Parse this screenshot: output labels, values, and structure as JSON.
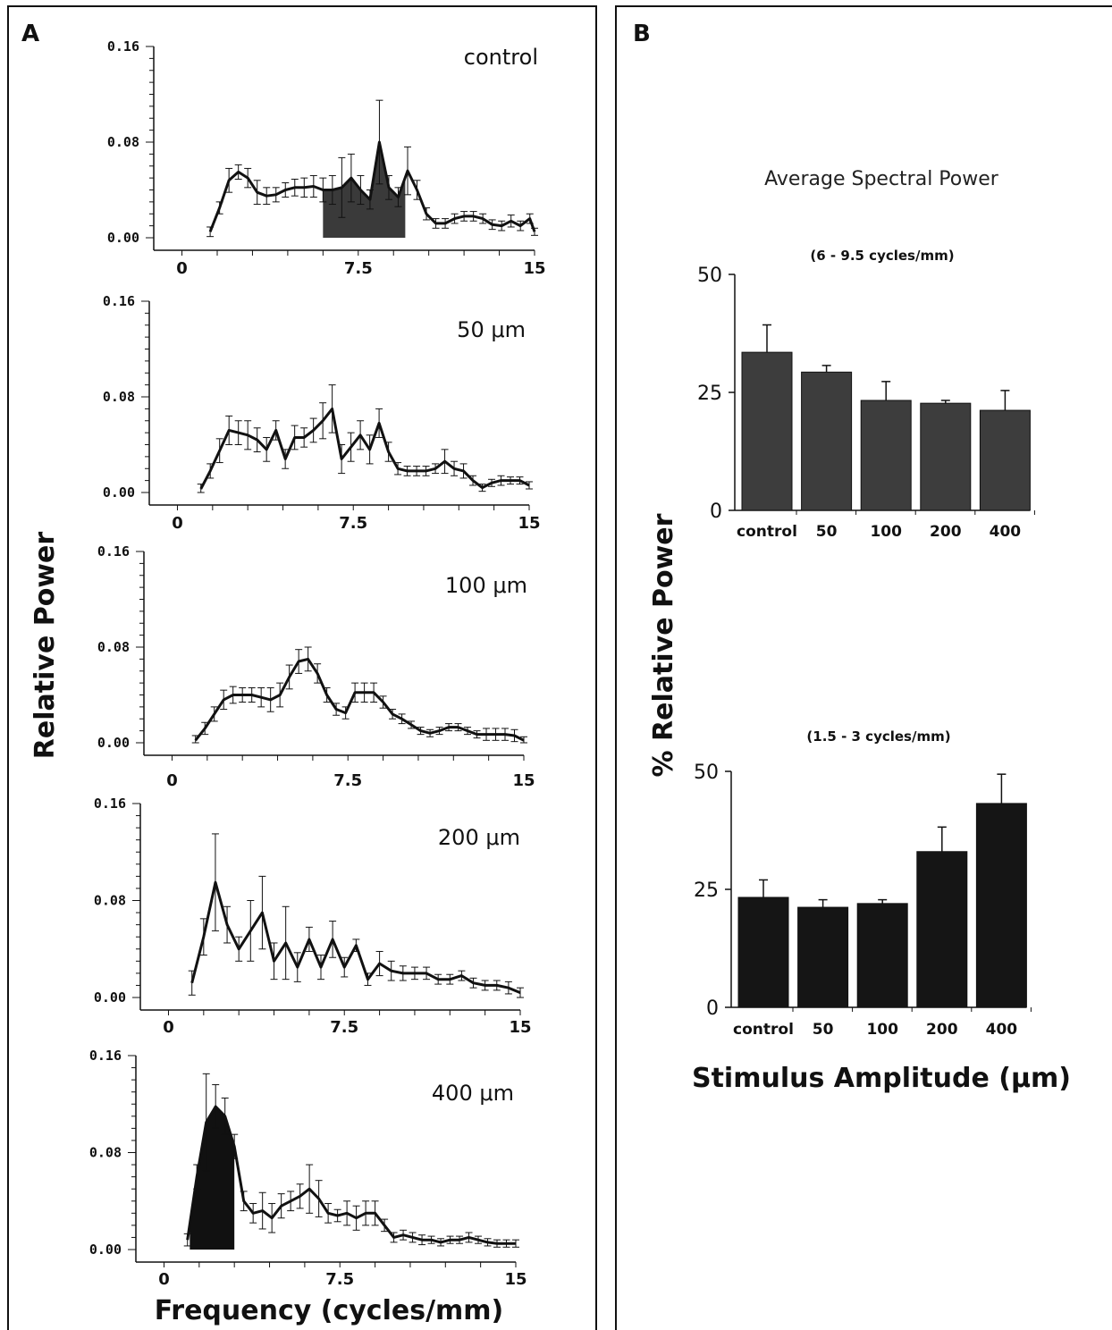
{
  "panel_a": {
    "label": "A",
    "ylabel": "Relative Power",
    "xlabel": "Frequency (cycles/mm)"
  },
  "panel_b": {
    "label": "B",
    "title": "Average Spectral Power",
    "ylabel": "% Relative Power",
    "xlabel": "Stimulus Amplitude (μm)"
  },
  "chart_data": [
    {
      "type": "line",
      "condition": "control",
      "x": [
        1.2,
        1.6,
        2,
        2.4,
        2.8,
        3.2,
        3.6,
        4,
        4.4,
        4.8,
        5.2,
        5.6,
        6,
        6.4,
        6.8,
        7.2,
        7.6,
        8,
        8.4,
        8.8,
        9.2,
        9.6,
        10,
        10.4,
        10.8,
        11.2,
        11.6,
        12,
        12.4,
        12.8,
        13.2,
        13.6,
        14,
        14.4,
        14.8,
        15
      ],
      "y": [
        0.005,
        0.025,
        0.048,
        0.055,
        0.05,
        0.038,
        0.035,
        0.036,
        0.04,
        0.042,
        0.042,
        0.043,
        0.04,
        0.04,
        0.042,
        0.05,
        0.04,
        0.032,
        0.08,
        0.042,
        0.034,
        0.056,
        0.04,
        0.02,
        0.012,
        0.012,
        0.016,
        0.018,
        0.018,
        0.016,
        0.011,
        0.01,
        0.014,
        0.01,
        0.016,
        0.005
      ],
      "err": [
        0.004,
        0.005,
        0.01,
        0.006,
        0.008,
        0.01,
        0.007,
        0.006,
        0.006,
        0.007,
        0.008,
        0.009,
        0.01,
        0.012,
        0.025,
        0.02,
        0.012,
        0.008,
        0.035,
        0.01,
        0.008,
        0.02,
        0.008,
        0.005,
        0.004,
        0.004,
        0.004,
        0.004,
        0.004,
        0.004,
        0.004,
        0.004,
        0.005,
        0.004,
        0.004,
        0.003
      ],
      "shaded": [
        6,
        9.5
      ],
      "xticks": [
        "0",
        "7.5",
        "15"
      ],
      "yticks": [
        "0.00",
        "0.08",
        "0.16"
      ],
      "xlim": [
        -1.2,
        15
      ],
      "ylim": [
        0,
        0.16
      ]
    },
    {
      "type": "line",
      "condition": "50 μm",
      "x": [
        1,
        1.4,
        1.8,
        2.2,
        2.6,
        3,
        3.4,
        3.8,
        4.2,
        4.6,
        5,
        5.4,
        5.8,
        6.2,
        6.6,
        7,
        7.4,
        7.8,
        8.2,
        8.6,
        9,
        9.4,
        9.8,
        10.2,
        10.6,
        11,
        11.4,
        11.8,
        12.2,
        12.6,
        13,
        13.4,
        13.8,
        14.2,
        14.6,
        15
      ],
      "y": [
        0.003,
        0.018,
        0.035,
        0.052,
        0.05,
        0.048,
        0.044,
        0.036,
        0.052,
        0.028,
        0.046,
        0.046,
        0.052,
        0.06,
        0.07,
        0.028,
        0.038,
        0.048,
        0.036,
        0.058,
        0.034,
        0.02,
        0.018,
        0.018,
        0.018,
        0.02,
        0.026,
        0.02,
        0.018,
        0.01,
        0.004,
        0.008,
        0.01,
        0.01,
        0.01,
        0.006
      ],
      "err": [
        0.004,
        0.006,
        0.01,
        0.012,
        0.01,
        0.012,
        0.01,
        0.01,
        0.008,
        0.008,
        0.01,
        0.008,
        0.01,
        0.015,
        0.02,
        0.012,
        0.012,
        0.012,
        0.012,
        0.012,
        0.008,
        0.005,
        0.004,
        0.004,
        0.004,
        0.004,
        0.01,
        0.006,
        0.006,
        0.004,
        0.003,
        0.003,
        0.004,
        0.003,
        0.003,
        0.003
      ],
      "xticks": [
        "0",
        "7.5",
        "15"
      ],
      "yticks": [
        "0.00",
        "0.08",
        "0.16"
      ],
      "xlim": [
        -1.2,
        15
      ],
      "ylim": [
        0,
        0.16
      ]
    },
    {
      "type": "line",
      "condition": "100 μm",
      "x": [
        1,
        1.4,
        1.8,
        2.2,
        2.6,
        3,
        3.4,
        3.8,
        4.2,
        4.6,
        5,
        5.4,
        5.8,
        6.2,
        6.6,
        7,
        7.4,
        7.8,
        8.2,
        8.6,
        9,
        9.4,
        9.8,
        10.2,
        10.6,
        11,
        11.4,
        11.8,
        12.2,
        12.6,
        13,
        13.4,
        13.8,
        14.2,
        14.6,
        15
      ],
      "y": [
        0.002,
        0.012,
        0.024,
        0.036,
        0.04,
        0.04,
        0.04,
        0.038,
        0.036,
        0.04,
        0.055,
        0.068,
        0.07,
        0.058,
        0.04,
        0.028,
        0.025,
        0.042,
        0.042,
        0.042,
        0.034,
        0.024,
        0.02,
        0.015,
        0.01,
        0.008,
        0.01,
        0.013,
        0.013,
        0.01,
        0.007,
        0.007,
        0.007,
        0.007,
        0.006,
        0.002
      ],
      "err": [
        0.004,
        0.005,
        0.006,
        0.008,
        0.007,
        0.006,
        0.006,
        0.008,
        0.01,
        0.01,
        0.01,
        0.01,
        0.01,
        0.008,
        0.006,
        0.005,
        0.005,
        0.008,
        0.008,
        0.008,
        0.005,
        0.004,
        0.004,
        0.003,
        0.003,
        0.003,
        0.003,
        0.003,
        0.003,
        0.003,
        0.003,
        0.005,
        0.005,
        0.005,
        0.005,
        0.003
      ],
      "xticks": [
        "0",
        "7.5",
        "15"
      ],
      "yticks": [
        "0.00",
        "0.08",
        "0.16"
      ],
      "xlim": [
        -1.2,
        15
      ],
      "ylim": [
        0,
        0.16
      ]
    },
    {
      "type": "line",
      "condition": "200 μm",
      "x": [
        1,
        1.5,
        2,
        2.5,
        3,
        3.5,
        4,
        4.5,
        5,
        5.5,
        6,
        6.5,
        7,
        7.5,
        8,
        8.5,
        9,
        9.5,
        10,
        10.5,
        11,
        11.5,
        12,
        12.5,
        13,
        13.5,
        14,
        14.5,
        15
      ],
      "y": [
        0.012,
        0.05,
        0.095,
        0.06,
        0.04,
        0.055,
        0.07,
        0.03,
        0.045,
        0.025,
        0.048,
        0.025,
        0.048,
        0.025,
        0.043,
        0.015,
        0.028,
        0.022,
        0.02,
        0.02,
        0.02,
        0.015,
        0.015,
        0.018,
        0.012,
        0.01,
        0.01,
        0.008,
        0.004
      ],
      "err": [
        0.01,
        0.015,
        0.04,
        0.015,
        0.01,
        0.025,
        0.03,
        0.015,
        0.03,
        0.012,
        0.01,
        0.01,
        0.015,
        0.008,
        0.005,
        0.005,
        0.01,
        0.008,
        0.006,
        0.005,
        0.005,
        0.004,
        0.004,
        0.004,
        0.004,
        0.004,
        0.004,
        0.005,
        0.004
      ],
      "xticks": [
        "0",
        "7.5",
        "15"
      ],
      "yticks": [
        "0.00",
        "0.08",
        "0.16"
      ],
      "xlim": [
        -1.2,
        15
      ],
      "ylim": [
        0,
        0.16
      ]
    },
    {
      "type": "line",
      "condition": "400 μm",
      "x": [
        1,
        1.4,
        1.8,
        2.2,
        2.6,
        3,
        3.4,
        3.8,
        4.2,
        4.6,
        5,
        5.4,
        5.8,
        6.2,
        6.6,
        7,
        7.4,
        7.8,
        8.2,
        8.6,
        9,
        9.4,
        9.8,
        10.2,
        10.6,
        11,
        11.4,
        11.8,
        12.2,
        12.6,
        13,
        13.4,
        13.8,
        14.2,
        14.6,
        15
      ],
      "y": [
        0.008,
        0.06,
        0.105,
        0.118,
        0.11,
        0.085,
        0.04,
        0.03,
        0.032,
        0.026,
        0.036,
        0.04,
        0.044,
        0.05,
        0.042,
        0.03,
        0.028,
        0.03,
        0.026,
        0.03,
        0.03,
        0.02,
        0.01,
        0.012,
        0.01,
        0.008,
        0.008,
        0.006,
        0.008,
        0.008,
        0.01,
        0.008,
        0.006,
        0.005,
        0.005,
        0.005
      ],
      "err": [
        0.005,
        0.01,
        0.04,
        0.018,
        0.015,
        0.01,
        0.008,
        0.008,
        0.015,
        0.012,
        0.01,
        0.008,
        0.01,
        0.02,
        0.015,
        0.008,
        0.005,
        0.01,
        0.01,
        0.01,
        0.01,
        0.005,
        0.004,
        0.004,
        0.004,
        0.004,
        0.003,
        0.003,
        0.003,
        0.003,
        0.004,
        0.003,
        0.003,
        0.003,
        0.003,
        0.003
      ],
      "shaded": [
        1.1,
        3
      ],
      "xticks": [
        "0",
        "7.5",
        "15"
      ],
      "yticks": [
        "0.00",
        "0.08",
        "0.16"
      ],
      "xlim": [
        -1.2,
        15
      ],
      "ylim": [
        0,
        0.16
      ]
    },
    {
      "type": "bar",
      "title": "(6 - 9.5  cycles/mm)",
      "categories": [
        "control",
        "50",
        "100",
        "200",
        "400"
      ],
      "values": [
        33.5,
        29.3,
        23.3,
        22.7,
        21.2
      ],
      "err": [
        5.8,
        1.4,
        4.0,
        0.6,
        4.2
      ],
      "yticks": [
        "0",
        "25",
        "50"
      ],
      "ylim": [
        0,
        50
      ],
      "color": "#3d3d3d"
    },
    {
      "type": "bar",
      "title": "(1.5 - 3 cycles/mm)",
      "categories": [
        "control",
        "50",
        "100",
        "200",
        "400"
      ],
      "values": [
        23.3,
        21.2,
        22.0,
        33.0,
        43.2
      ],
      "err": [
        3.7,
        1.6,
        0.8,
        5.2,
        6.2
      ],
      "yticks": [
        "0",
        "25",
        "50"
      ],
      "ylim": [
        0,
        50
      ],
      "color": "#151515"
    }
  ]
}
